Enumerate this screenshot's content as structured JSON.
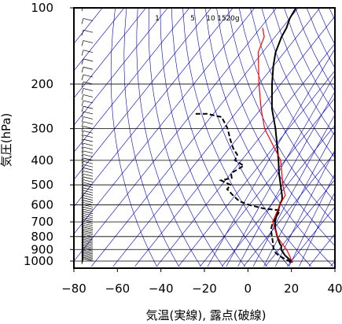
{
  "chart_data": {
    "type": "skew-t",
    "xlabel": "気温(実線), 露点(破線)",
    "ylabel": "気圧(hPa)",
    "xlim": [
      -80,
      40
    ],
    "ylim": [
      1030,
      100
    ],
    "y_scale": "log",
    "x_ticks": [
      -80,
      -60,
      -40,
      -20,
      0,
      20,
      40
    ],
    "x_tick_labels": [
      "−80",
      "−60",
      "−40",
      "−20",
      "0",
      "20",
      "40"
    ],
    "y_ticks": [
      100,
      200,
      300,
      400,
      500,
      600,
      700,
      800,
      900,
      1000
    ],
    "y_tick_labels": [
      "100",
      "200",
      "300",
      "400",
      "500",
      "600",
      "700",
      "800",
      "900",
      "1000"
    ],
    "mixing_ratio_labels": [
      "1",
      "5",
      "10",
      "15",
      "20g"
    ],
    "colors": {
      "temperature": "#000000",
      "dewpoint": "#000000",
      "parcel": "#ff0000",
      "background_lines": "#0000cc",
      "grid": "#000000"
    },
    "series": [
      {
        "key": "temperature",
        "style": "solid",
        "points": [
          [
            1013,
            21
          ],
          [
            1000,
            20
          ],
          [
            975,
            17.5
          ],
          [
            950,
            15
          ],
          [
            925,
            13
          ],
          [
            900,
            11
          ],
          [
            875,
            10
          ],
          [
            850,
            8
          ],
          [
            800,
            4.5
          ],
          [
            750,
            1
          ],
          [
            700,
            -2
          ],
          [
            650,
            -4
          ],
          [
            600,
            -6
          ],
          [
            570,
            -7
          ],
          [
            550,
            -8.5
          ],
          [
            500,
            -13
          ],
          [
            450,
            -18
          ],
          [
            400,
            -23
          ],
          [
            350,
            -29
          ],
          [
            300,
            -36
          ],
          [
            250,
            -45
          ],
          [
            200,
            -54
          ],
          [
            170,
            -60
          ],
          [
            150,
            -64
          ],
          [
            130,
            -67
          ],
          [
            120,
            -68
          ],
          [
            110,
            -70
          ],
          [
            100,
            -71
          ]
        ]
      },
      {
        "key": "dewpoint",
        "style": "dashed",
        "points": [
          [
            1013,
            20
          ],
          [
            1000,
            19
          ],
          [
            975,
            15.5
          ],
          [
            950,
            12
          ],
          [
            925,
            9.5
          ],
          [
            900,
            7.5
          ],
          [
            850,
            5
          ],
          [
            800,
            2
          ],
          [
            750,
            -1
          ],
          [
            700,
            -3
          ],
          [
            650,
            -3.5
          ],
          [
            630,
            -4
          ],
          [
            620,
            -12
          ],
          [
            600,
            -20
          ],
          [
            580,
            -26
          ],
          [
            550,
            -31
          ],
          [
            520,
            -36
          ],
          [
            500,
            -36
          ],
          [
            480,
            -42
          ],
          [
            470,
            -38
          ],
          [
            450,
            -40
          ],
          [
            420,
            -37
          ],
          [
            400,
            -43
          ],
          [
            380,
            -44
          ],
          [
            360,
            -48
          ],
          [
            330,
            -53
          ],
          [
            300,
            -58
          ],
          [
            270,
            -65
          ],
          [
            262,
            -73
          ],
          [
            262,
            -79
          ]
        ]
      },
      {
        "key": "parcel",
        "style": "solid",
        "points": [
          [
            1013,
            21
          ],
          [
            950,
            17
          ],
          [
            900,
            13.5
          ],
          [
            850,
            9
          ],
          [
            800,
            4.5
          ],
          [
            700,
            -3
          ],
          [
            600,
            -6
          ],
          [
            550,
            -7
          ],
          [
            500,
            -12
          ],
          [
            400,
            -22
          ],
          [
            300,
            -41
          ],
          [
            250,
            -50
          ],
          [
            200,
            -60
          ],
          [
            150,
            -72
          ],
          [
            130,
            -75
          ],
          [
            120,
            -79
          ]
        ]
      }
    ],
    "wind_barbs": {
      "color": "#000000",
      "description": "wind barbs plotted along the left edge from 1000 to 100 hPa"
    }
  }
}
